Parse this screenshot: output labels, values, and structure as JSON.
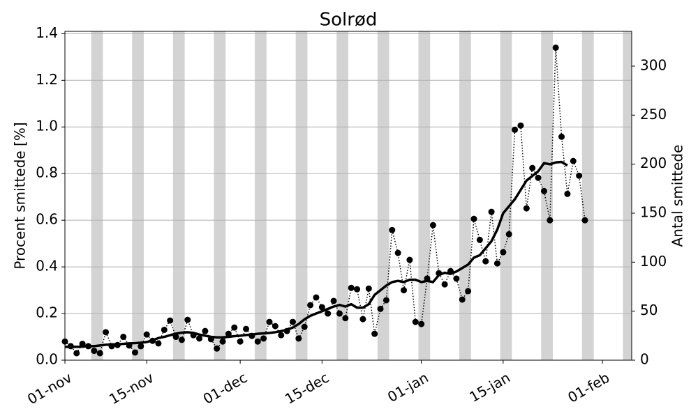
{
  "chart_data": {
    "type": "line",
    "title": "Solrød",
    "y_label": "Procent smittede [%]",
    "y2_label": "Antal smittede",
    "x": [
      "01-nov",
      "02-nov",
      "03-nov",
      "04-nov",
      "05-nov",
      "06-nov",
      "07-nov",
      "08-nov",
      "09-nov",
      "10-nov",
      "11-nov",
      "12-nov",
      "13-nov",
      "14-nov",
      "15-nov",
      "16-nov",
      "17-nov",
      "18-nov",
      "19-nov",
      "20-nov",
      "21-nov",
      "22-nov",
      "23-nov",
      "24-nov",
      "25-nov",
      "26-nov",
      "27-nov",
      "28-nov",
      "29-nov",
      "30-nov",
      "01-dec",
      "02-dec",
      "03-dec",
      "04-dec",
      "05-dec",
      "06-dec",
      "07-dec",
      "08-dec",
      "09-dec",
      "10-dec",
      "11-dec",
      "12-dec",
      "13-dec",
      "14-dec",
      "15-dec",
      "16-dec",
      "17-dec",
      "18-dec",
      "19-dec",
      "20-dec",
      "21-dec",
      "22-dec",
      "23-dec",
      "24-dec",
      "25-dec",
      "26-dec",
      "27-dec",
      "28-dec",
      "29-dec",
      "30-dec",
      "31-dec",
      "01-jan",
      "02-jan",
      "03-jan",
      "04-jan",
      "05-jan",
      "06-jan",
      "07-jan",
      "08-jan",
      "09-jan",
      "10-jan",
      "11-jan",
      "12-jan",
      "13-jan",
      "14-jan",
      "15-jan",
      "16-jan",
      "17-jan",
      "18-jan",
      "19-jan",
      "20-jan",
      "21-jan",
      "22-jan",
      "23-jan",
      "24-jan",
      "25-jan",
      "26-jan",
      "27-jan",
      "28-jan",
      "29-jan",
      "30-jan",
      "31-jan",
      "01-feb",
      "02-feb",
      "03-feb",
      "04-feb",
      "05-feb",
      "06-feb"
    ],
    "series": [
      {
        "color": "#000000",
        "style": "dotted-markers",
        "values": [
          0.08,
          0.06,
          0.03,
          0.07,
          0.06,
          0.04,
          0.03,
          0.12,
          0.06,
          0.065,
          0.1,
          0.063,
          0.033,
          0.06,
          0.11,
          0.083,
          0.072,
          0.13,
          0.17,
          0.1,
          0.087,
          0.173,
          0.107,
          0.093,
          0.125,
          0.09,
          0.05,
          0.08,
          0.113,
          0.14,
          0.08,
          0.134,
          0.104,
          0.08,
          0.093,
          0.164,
          0.146,
          0.107,
          0.125,
          0.164,
          0.093,
          0.143,
          0.236,
          0.269,
          0.227,
          0.2,
          0.254,
          0.2,
          0.18,
          0.31,
          0.304,
          0.176,
          0.307,
          0.113,
          0.22,
          0.257,
          0.558,
          0.46,
          0.3,
          0.43,
          0.164,
          0.155,
          0.35,
          0.579,
          0.373,
          0.325,
          0.382,
          0.35,
          0.26,
          0.296,
          0.606,
          0.516,
          0.424,
          0.636,
          0.415,
          0.463,
          0.54,
          0.988,
          1.006,
          0.651,
          0.824,
          0.782,
          0.725,
          0.6,
          1.34,
          0.958,
          0.713,
          0.854,
          0.791,
          0.6,
          null,
          null,
          null,
          null,
          null,
          null,
          null,
          null
        ]
      },
      {
        "color": "#000000",
        "style": "line",
        "values": [
          0.057,
          0.057,
          0.057,
          0.058,
          0.06,
          0.06,
          0.063,
          0.066,
          0.068,
          0.068,
          0.07,
          0.072,
          0.073,
          0.075,
          0.078,
          0.085,
          0.095,
          0.1,
          0.107,
          0.114,
          0.118,
          0.12,
          0.117,
          0.11,
          0.105,
          0.1,
          0.098,
          0.098,
          0.1,
          0.103,
          0.105,
          0.108,
          0.11,
          0.113,
          0.115,
          0.117,
          0.12,
          0.125,
          0.13,
          0.14,
          0.155,
          0.175,
          0.19,
          0.2,
          0.21,
          0.22,
          0.23,
          0.237,
          0.23,
          0.24,
          0.225,
          0.225,
          0.24,
          0.28,
          0.3,
          0.32,
          0.335,
          0.34,
          0.335,
          0.345,
          0.345,
          0.335,
          0.34,
          0.335,
          0.365,
          0.375,
          0.37,
          0.38,
          0.395,
          0.41,
          0.44,
          0.45,
          0.48,
          0.51,
          0.56,
          0.63,
          0.66,
          0.69,
          0.73,
          0.77,
          0.79,
          0.81,
          0.845,
          0.84,
          0.848,
          0.85,
          0.835,
          null,
          null,
          null,
          null,
          null,
          null,
          null,
          null,
          null,
          null,
          null
        ]
      }
    ],
    "xlim": [
      "01-nov",
      "06-feb"
    ],
    "xticks": [
      "01-nov",
      "15-nov",
      "01-dec",
      "15-dec",
      "01-jan",
      "15-jan",
      "01-feb"
    ],
    "ylim": [
      0,
      1.41
    ],
    "yticks": [
      {
        "value": 0,
        "label": "0.0"
      },
      0.2,
      0.4,
      0.6,
      0.8,
      {
        "value": 1,
        "label": "1.0"
      },
      1.2,
      1.4
    ],
    "y2lim": [
      0,
      335.5
    ],
    "y2ticks": [
      0,
      50,
      100,
      150,
      200,
      250,
      300
    ],
    "grid": true,
    "weekend_shading": "#d3d3d3"
  }
}
